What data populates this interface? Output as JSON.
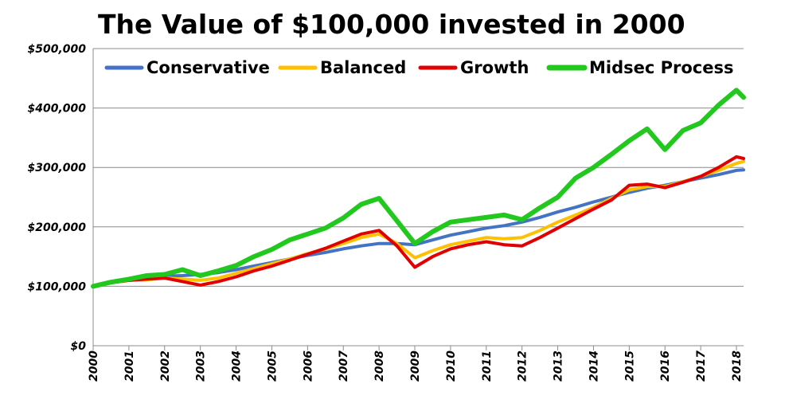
{
  "chart_data": {
    "type": "line",
    "title": "The Value of $100,000 invested in 2000",
    "xlabel": "",
    "ylabel": "",
    "xlim": [
      2000,
      2018.2
    ],
    "ylim": [
      0,
      500000
    ],
    "grid": true,
    "legend_position": "top",
    "x_ticks": [
      "2000",
      "2001",
      "2002",
      "2003",
      "2004",
      "2005",
      "2006",
      "2007",
      "2008",
      "2009",
      "2010",
      "2011",
      "2012",
      "2013",
      "2014",
      "2015",
      "2016",
      "2017",
      "2018"
    ],
    "y_ticks": [
      {
        "value": 0,
        "label": "$0"
      },
      {
        "value": 100000,
        "label": "$100,000"
      },
      {
        "value": 200000,
        "label": "$200,000"
      },
      {
        "value": 300000,
        "label": "$300,000"
      },
      {
        "value": 400000,
        "label": "$400,000"
      },
      {
        "value": 500000,
        "label": "$500,000"
      }
    ],
    "x": [
      2000.0,
      2000.5,
      2001.0,
      2001.5,
      2002.0,
      2002.5,
      2003.0,
      2003.5,
      2004.0,
      2004.5,
      2005.0,
      2005.5,
      2006.0,
      2006.5,
      2007.0,
      2007.5,
      2008.0,
      2008.5,
      2009.0,
      2009.5,
      2010.0,
      2010.5,
      2011.0,
      2011.5,
      2012.0,
      2012.5,
      2013.0,
      2013.5,
      2014.0,
      2014.5,
      2015.0,
      2015.5,
      2016.0,
      2016.5,
      2017.0,
      2017.5,
      2018.0,
      2018.2
    ],
    "series": [
      {
        "name": "Conservative",
        "color": "#4472c4",
        "values": [
          100000,
          106000,
          110000,
          113000,
          117000,
          118000,
          120000,
          123000,
          128000,
          134000,
          140000,
          146000,
          152000,
          157000,
          163000,
          168000,
          172000,
          172000,
          170000,
          178000,
          186000,
          192000,
          198000,
          202000,
          208000,
          216000,
          225000,
          233000,
          242000,
          250000,
          258000,
          265000,
          270000,
          276000,
          282000,
          288000,
          295000,
          296000
        ]
      },
      {
        "name": "Balanced",
        "color": "#ffc000",
        "values": [
          100000,
          106000,
          110000,
          111000,
          114000,
          112000,
          110000,
          114000,
          122000,
          130000,
          138000,
          146000,
          155000,
          163000,
          172000,
          182000,
          188000,
          172000,
          148000,
          160000,
          170000,
          176000,
          182000,
          180000,
          182000,
          194000,
          208000,
          220000,
          233000,
          248000,
          262000,
          268000,
          268000,
          276000,
          285000,
          295000,
          307000,
          310000
        ]
      },
      {
        "name": "Growth",
        "color": "#e00000",
        "values": [
          100000,
          106000,
          110000,
          112000,
          114000,
          108000,
          102000,
          108000,
          116000,
          126000,
          134000,
          144000,
          154000,
          164000,
          176000,
          188000,
          194000,
          168000,
          132000,
          150000,
          163000,
          170000,
          175000,
          170000,
          168000,
          182000,
          198000,
          214000,
          230000,
          245000,
          270000,
          272000,
          266000,
          275000,
          285000,
          300000,
          318000,
          315000
        ]
      },
      {
        "name": "Midsec Process",
        "color": "#22c81e",
        "values": [
          100000,
          107000,
          112000,
          118000,
          120000,
          128000,
          118000,
          126000,
          135000,
          150000,
          162000,
          178000,
          188000,
          198000,
          215000,
          238000,
          248000,
          210000,
          172000,
          192000,
          208000,
          212000,
          216000,
          220000,
          212000,
          232000,
          250000,
          282000,
          300000,
          322000,
          345000,
          365000,
          330000,
          362000,
          375000,
          405000,
          430000,
          418000
        ]
      }
    ]
  }
}
